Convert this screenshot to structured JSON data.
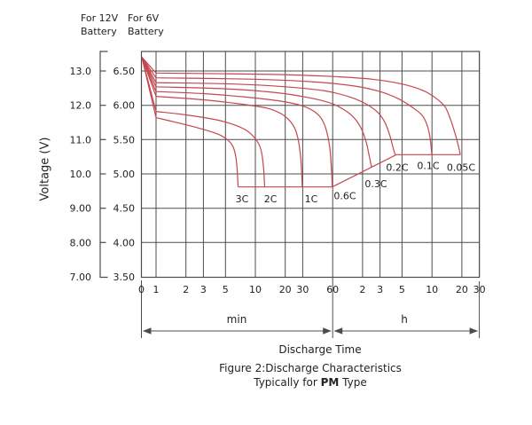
{
  "colors": {
    "curve": "#c5464f",
    "grid": "#4c4c4c",
    "text": "#222222",
    "background": "#ffffff"
  },
  "header": {
    "left_scale_line1": "For 12V",
    "left_scale_line2": "Battery",
    "right_scale_line1": "For 6V",
    "right_scale_line2": "Battery"
  },
  "labels": {
    "y_axis_title": "Voltage (V)",
    "unit_min": "min",
    "unit_hours": "h",
    "x_axis_title": "Discharge Time",
    "caption_line1": "Figure 2:Discharge Characteristics",
    "caption_line2_prefix": "Typically for ",
    "caption_line2_bold": "PM",
    "caption_line2_suffix": " Type"
  },
  "chart_data": {
    "type": "line",
    "title": "Figure 2:Discharge Characteristics Typically for PM Type",
    "xlabel": "Discharge Time",
    "ylabel": "Voltage (V)",
    "x_scale": "log (time, minutes); axis broken at 0",
    "grid": true,
    "legend_position": "inline curve labels",
    "x_sections": [
      {
        "unit": "min",
        "ticks": [
          {
            "label": "0",
            "t": null
          },
          {
            "label": "1",
            "t": 1
          },
          {
            "label": "2",
            "t": 2
          },
          {
            "label": "3",
            "t": 3
          },
          {
            "label": "5",
            "t": 5
          },
          {
            "label": "10",
            "t": 10
          },
          {
            "label": "20",
            "t": 20
          },
          {
            "label": "30",
            "t": 30
          },
          {
            "label": "60",
            "t": 60
          }
        ]
      },
      {
        "unit": "h",
        "ticks": [
          {
            "label": "2",
            "t": 120
          },
          {
            "label": "3",
            "t": 180
          },
          {
            "label": "5",
            "t": 300
          },
          {
            "label": "10",
            "t": 600
          },
          {
            "label": "20",
            "t": 1200
          },
          {
            "label": "30",
            "t": 1800
          }
        ]
      }
    ],
    "y_axis_12v": {
      "header": "For 12V Battery",
      "labels": [
        "13.0",
        "12.0",
        "11.0",
        "10.0",
        "9.00",
        "8.00",
        "7.00"
      ],
      "values_12v": [
        13.0,
        12.0,
        11.0,
        10.0,
        9.0,
        8.0,
        7.0
      ]
    },
    "y_axis_6v": {
      "header": "For 6V Battery",
      "labels": [
        "6.50",
        "6.00",
        "5.50",
        "5.00",
        "4.50",
        "4.00",
        "3.50"
      ],
      "values_6v": [
        6.5,
        6.0,
        5.5,
        5.0,
        4.5,
        4.0,
        3.5
      ]
    },
    "y_range_6v": [
      3.5,
      6.78
    ],
    "series_note": "points are [time_minutes, voltage_6V_scale]; 12V reading = 2 x 6V value; all curves start from ~6.7V at far left",
    "series": [
      {
        "name": "3C",
        "points": [
          [
            0.72,
            6.7
          ],
          [
            1,
            5.82
          ],
          [
            1.5,
            5.76
          ],
          [
            2.5,
            5.68
          ],
          [
            3.5,
            5.62
          ],
          [
            4.5,
            5.56
          ],
          [
            5.3,
            5.49
          ],
          [
            5.9,
            5.41
          ],
          [
            6.3,
            5.28
          ],
          [
            6.55,
            5.08
          ],
          [
            6.7,
            4.81
          ]
        ]
      },
      {
        "name": "2C",
        "points": [
          [
            0.72,
            6.7
          ],
          [
            1,
            5.91
          ],
          [
            2,
            5.86
          ],
          [
            4,
            5.79
          ],
          [
            6,
            5.72
          ],
          [
            8,
            5.64
          ],
          [
            9.5,
            5.55
          ],
          [
            10.8,
            5.44
          ],
          [
            11.6,
            5.3
          ],
          [
            12.1,
            5.08
          ],
          [
            12.4,
            4.81
          ]
        ]
      },
      {
        "name": "1C",
        "points": [
          [
            0.72,
            6.7
          ],
          [
            1,
            6.13
          ],
          [
            3,
            6.08
          ],
          [
            7,
            6.02
          ],
          [
            13,
            5.96
          ],
          [
            18,
            5.88
          ],
          [
            22,
            5.78
          ],
          [
            25,
            5.66
          ],
          [
            27,
            5.5
          ],
          [
            28.6,
            5.24
          ],
          [
            29.3,
            5.0
          ],
          [
            29.7,
            4.81
          ]
        ]
      },
      {
        "name": "0.6C",
        "points": [
          [
            0.72,
            6.7
          ],
          [
            1,
            6.2
          ],
          [
            3,
            6.17
          ],
          [
            8,
            6.12
          ],
          [
            18,
            6.06
          ],
          [
            30,
            5.99
          ],
          [
            40,
            5.9
          ],
          [
            47,
            5.79
          ],
          [
            52,
            5.63
          ],
          [
            56,
            5.4
          ],
          [
            58.5,
            5.05
          ],
          [
            59.5,
            4.81
          ]
        ]
      },
      {
        "name": "0.3C",
        "points": [
          [
            0.72,
            6.7
          ],
          [
            1,
            6.27
          ],
          [
            5,
            6.24
          ],
          [
            15,
            6.19
          ],
          [
            35,
            6.11
          ],
          [
            60,
            6.02
          ],
          [
            85,
            5.9
          ],
          [
            105,
            5.77
          ],
          [
            120,
            5.62
          ],
          [
            132,
            5.44
          ],
          [
            142,
            5.22
          ],
          [
            148,
            5.1
          ]
        ]
      },
      {
        "name": "0.2C",
        "points": [
          [
            0.72,
            6.7
          ],
          [
            1,
            6.33
          ],
          [
            6,
            6.31
          ],
          [
            20,
            6.27
          ],
          [
            50,
            6.21
          ],
          [
            90,
            6.12
          ],
          [
            130,
            6.02
          ],
          [
            170,
            5.9
          ],
          [
            200,
            5.76
          ],
          [
            225,
            5.57
          ],
          [
            245,
            5.37
          ],
          [
            256,
            5.28
          ]
        ]
      },
      {
        "name": "0.1C",
        "points": [
          [
            0.72,
            6.7
          ],
          [
            1,
            6.4
          ],
          [
            10,
            6.38
          ],
          [
            40,
            6.34
          ],
          [
            100,
            6.28
          ],
          [
            180,
            6.2
          ],
          [
            280,
            6.09
          ],
          [
            390,
            5.96
          ],
          [
            480,
            5.85
          ],
          [
            540,
            5.7
          ],
          [
            575,
            5.52
          ],
          [
            598,
            5.28
          ]
        ]
      },
      {
        "name": "0.05C",
        "points": [
          [
            0.72,
            6.7
          ],
          [
            1,
            6.47
          ],
          [
            15,
            6.45
          ],
          [
            60,
            6.42
          ],
          [
            150,
            6.38
          ],
          [
            300,
            6.31
          ],
          [
            480,
            6.22
          ],
          [
            650,
            6.11
          ],
          [
            810,
            5.98
          ],
          [
            920,
            5.8
          ],
          [
            1030,
            5.58
          ],
          [
            1110,
            5.4
          ],
          [
            1160,
            5.28
          ]
        ]
      }
    ],
    "series_labels": [
      {
        "text": "3C",
        "t": 7.35,
        "v": 4.64
      },
      {
        "text": "2C",
        "t": 14.2,
        "v": 4.64
      },
      {
        "text": "1C",
        "t": 36.5,
        "v": 4.64
      },
      {
        "text": "0.6C",
        "t": 79.8,
        "v": 4.68
      },
      {
        "text": "0.3C",
        "t": 163.8,
        "v": 4.86
      },
      {
        "text": "0.2C",
        "t": 268.4,
        "v": 5.1
      },
      {
        "text": "0.1C",
        "t": 550.8,
        "v": 5.12
      },
      {
        "text": "0.05C",
        "t": 1178,
        "v": 5.1
      }
    ],
    "cutoff_line": {
      "note": "red line joining curve end points (final discharge voltage)",
      "points": [
        [
          6.7,
          4.81
        ],
        [
          59.5,
          4.81
        ],
        [
          263,
          5.28
        ],
        [
          1160,
          5.28
        ]
      ]
    }
  }
}
